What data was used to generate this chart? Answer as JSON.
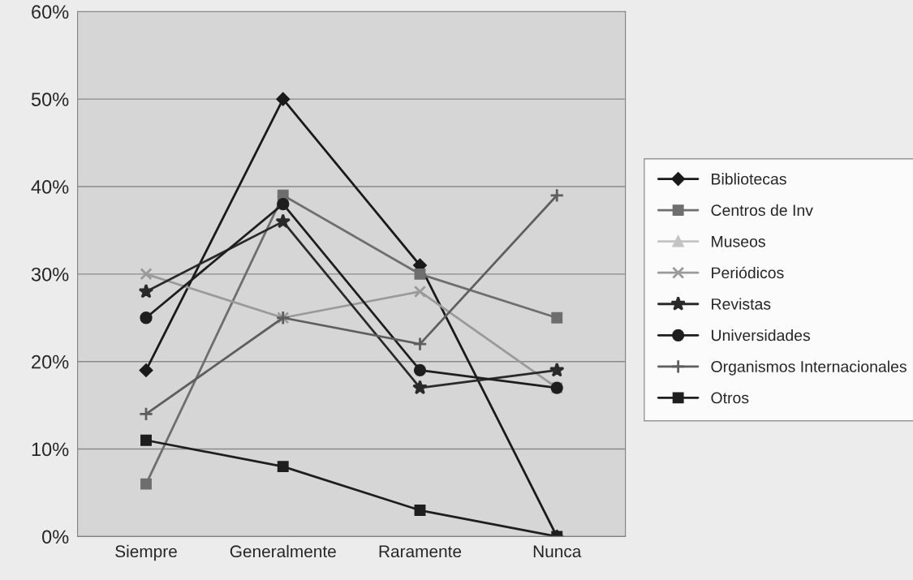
{
  "chart_data": {
    "type": "line",
    "categories": [
      "Siempre",
      "Generalmente",
      "Raramente",
      "Nunca"
    ],
    "ylim": [
      0,
      0.6
    ],
    "yticks": [
      {
        "value": 0,
        "label": "0%"
      },
      {
        "value": 0.1,
        "label": "10%"
      },
      {
        "value": 0.2,
        "label": "20%"
      },
      {
        "value": 0.3,
        "label": "30%"
      },
      {
        "value": 0.4,
        "label": "40%"
      },
      {
        "value": 0.5,
        "label": "50%"
      },
      {
        "value": 0.6,
        "label": "60%"
      }
    ],
    "grid": "y",
    "legend": "right",
    "line_style": "solid",
    "series": [
      {
        "name": "Bibliotecas",
        "color": "#1a1a1a",
        "marker": "diamond",
        "values": [
          0.19,
          0.5,
          0.31,
          0.0
        ]
      },
      {
        "name": "Centros de Inv",
        "color": "#6e6e6e",
        "marker": "square",
        "values": [
          0.06,
          0.39,
          0.3,
          0.25
        ]
      },
      {
        "name": "Museos",
        "color": "#c4c4c4",
        "marker": "triangle",
        "values": [
          null,
          null,
          null,
          null
        ]
      },
      {
        "name": "Periódicos",
        "color": "#9a9a9a",
        "marker": "cross",
        "values": [
          0.3,
          0.25,
          0.28,
          0.17
        ]
      },
      {
        "name": "Revistas",
        "color": "#2a2a2a",
        "marker": "star",
        "values": [
          0.28,
          0.36,
          0.17,
          0.19
        ]
      },
      {
        "name": "Universidades",
        "color": "#1e1e1e",
        "marker": "circle",
        "values": [
          0.25,
          0.38,
          0.19,
          0.17
        ]
      },
      {
        "name": "Organismos Internacionales",
        "color": "#5e5e5e",
        "marker": "plus",
        "values": [
          0.14,
          0.25,
          0.22,
          0.39
        ]
      },
      {
        "name": "Otros",
        "color": "#1e1e1e",
        "marker": "square",
        "values": [
          0.11,
          0.08,
          0.03,
          0.0
        ]
      }
    ]
  }
}
